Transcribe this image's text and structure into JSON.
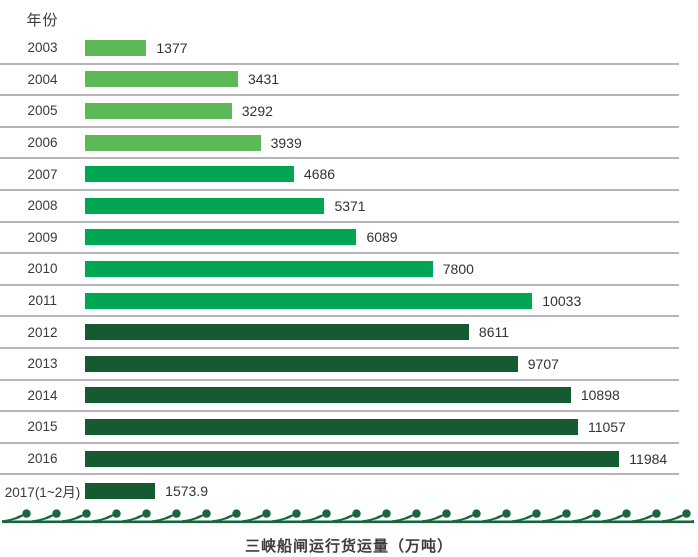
{
  "palette": {
    "light_green": "#5CB956",
    "bright_green": "#00A651",
    "dark_green": "#165A31",
    "wave_green": "#17663C",
    "separator_gray": "#B5B5B5",
    "text_dark": "#3A3A3A"
  },
  "chart_data": {
    "type": "bar",
    "orientation": "horizontal",
    "title": "三峡船闸运行货运量（万吨）",
    "axis_header": "年份",
    "xlim": [
      0,
      12000
    ],
    "grid": "row-separators-only",
    "legend": "none",
    "categories": [
      "2003",
      "2004",
      "2005",
      "2006",
      "2007",
      "2008",
      "2009",
      "2010",
      "2011",
      "2012",
      "2013",
      "2014",
      "2015",
      "2016",
      "2017(1~2月)"
    ],
    "values": [
      1377,
      3431,
      3292,
      3939,
      4686,
      5371,
      6089,
      7800,
      10033,
      8611,
      9707,
      10898,
      11057,
      11984,
      1573.9
    ],
    "rows": [
      {
        "year": "2003",
        "value": 1377,
        "label": "1377",
        "color": "light_green"
      },
      {
        "year": "2004",
        "value": 3431,
        "label": "3431",
        "color": "light_green"
      },
      {
        "year": "2005",
        "value": 3292,
        "label": "3292",
        "color": "light_green"
      },
      {
        "year": "2006",
        "value": 3939,
        "label": "3939",
        "color": "light_green"
      },
      {
        "year": "2007",
        "value": 4686,
        "label": "4686",
        "color": "bright_green"
      },
      {
        "year": "2008",
        "value": 5371,
        "label": "5371",
        "color": "bright_green"
      },
      {
        "year": "2009",
        "value": 6089,
        "label": "6089",
        "color": "bright_green"
      },
      {
        "year": "2010",
        "value": 7800,
        "label": "7800",
        "color": "bright_green"
      },
      {
        "year": "2011",
        "value": 10033,
        "label": "10033",
        "color": "bright_green"
      },
      {
        "year": "2012",
        "value": 8611,
        "label": "8611",
        "color": "dark_green"
      },
      {
        "year": "2013",
        "value": 9707,
        "label": "9707",
        "color": "dark_green"
      },
      {
        "year": "2014",
        "value": 10898,
        "label": "10898",
        "color": "dark_green"
      },
      {
        "year": "2015",
        "value": 11057,
        "label": "11057",
        "color": "dark_green"
      },
      {
        "year": "2016",
        "value": 11984,
        "label": "11984",
        "color": "dark_green"
      },
      {
        "year": "2017(1~2月)",
        "value": 1573.9,
        "label": "1573.9",
        "color": "dark_green"
      }
    ]
  }
}
